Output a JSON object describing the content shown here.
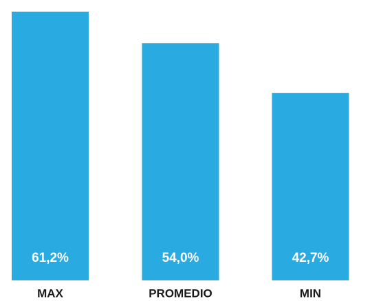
{
  "chart_data": {
    "type": "bar",
    "categories": [
      "MAX",
      "PROMEDIO",
      "MIN"
    ],
    "values": [
      61.2,
      54.0,
      42.7
    ],
    "value_labels": [
      "61,2%",
      "54,0%",
      "42,7%"
    ],
    "color": "#29abe2"
  }
}
